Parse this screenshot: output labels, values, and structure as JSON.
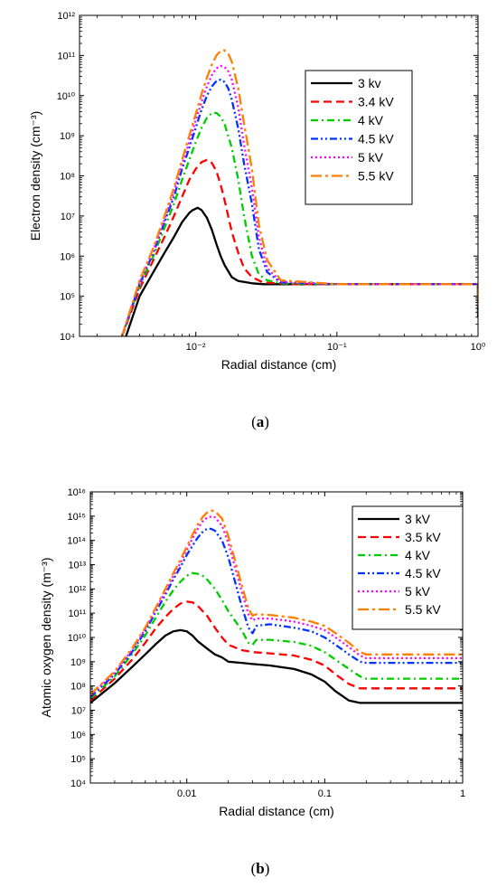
{
  "chart_data": [
    {
      "type": "line",
      "panel": "a",
      "caption": {
        "open": "(",
        "letter": "a",
        "close": ")"
      },
      "xlabel": "Radial distance (cm)",
      "ylabel": "Electron density (cm⁻³)",
      "x_scale": "log",
      "y_scale": "log",
      "xlim": [
        0.0015,
        1
      ],
      "ylim": [
        10000,
        1000000000000
      ],
      "x_ticks": [
        {
          "value": 0.01,
          "label": "10⁻²"
        },
        {
          "value": 0.1,
          "label": "10⁻¹"
        },
        {
          "value": 1,
          "label": "10⁰"
        }
      ],
      "y_ticks": [
        {
          "value": 10000,
          "label": "10⁴"
        },
        {
          "value": 100000,
          "label": "10⁵"
        },
        {
          "value": 1000000,
          "label": "10⁶"
        },
        {
          "value": 10000000,
          "label": "10⁷"
        },
        {
          "value": 100000000,
          "label": "10⁸"
        },
        {
          "value": 1000000000,
          "label": "10⁹"
        },
        {
          "value": 10000000000,
          "label": "10¹⁰"
        },
        {
          "value": 100000000000,
          "label": "10¹¹"
        },
        {
          "value": 1000000000000,
          "label": "10¹²"
        }
      ],
      "grid": false,
      "legend_position": "top-right",
      "series": [
        {
          "name": "3 kv",
          "color": "#000000",
          "dash": "solid",
          "x": [
            0.0032,
            0.004,
            0.005,
            0.006,
            0.007,
            0.008,
            0.009,
            0.0095,
            0.0103,
            0.011,
            0.012,
            0.013,
            0.014,
            0.015,
            0.016,
            0.018,
            0.02,
            0.025,
            0.03,
            0.05,
            0.1,
            0.3,
            0.999,
            1
          ],
          "y": [
            10000,
            100000,
            400000,
            1200000,
            3000000,
            7000000,
            12000000,
            14000000,
            16000000,
            14000000,
            9000000,
            4500000,
            2000000,
            1000000,
            600000,
            300000,
            240000,
            210000,
            200000,
            200000,
            200000,
            200000,
            200000,
            30000
          ]
        },
        {
          "name": "3.4 kV",
          "color": "#ff0000",
          "dash": "dashed",
          "x": [
            0.003,
            0.004,
            0.005,
            0.006,
            0.007,
            0.008,
            0.009,
            0.01,
            0.011,
            0.012,
            0.013,
            0.014,
            0.015,
            0.016,
            0.018,
            0.02,
            0.022,
            0.025,
            0.03,
            0.05,
            0.1,
            0.3,
            0.999,
            1
          ],
          "y": [
            10000,
            150000,
            800000,
            3000000,
            10000000,
            30000000,
            80000000,
            150000000,
            220000000,
            250000000,
            210000000,
            130000000,
            60000000,
            25000000,
            4000000,
            1200000,
            500000,
            300000,
            220000,
            200000,
            200000,
            200000,
            200000,
            35000
          ]
        },
        {
          "name": "4 kV",
          "color": "#00cc00",
          "dash": "dashdot",
          "x": [
            0.003,
            0.004,
            0.005,
            0.006,
            0.007,
            0.008,
            0.009,
            0.01,
            0.011,
            0.012,
            0.013,
            0.014,
            0.015,
            0.016,
            0.018,
            0.02,
            0.022,
            0.025,
            0.028,
            0.032,
            0.04,
            0.1,
            0.3,
            0.999,
            1
          ],
          "y": [
            10000,
            180000,
            1000000,
            5000000,
            20000000,
            80000000,
            250000000,
            700000000,
            1600000000,
            2800000000,
            3700000000,
            3700000000,
            3000000000,
            2000000000,
            500000000,
            80000000,
            10000000,
            1000000,
            350000,
            250000,
            210000,
            200000,
            200000,
            200000,
            40000
          ]
        },
        {
          "name": "4.5 kV",
          "color": "#0033ff",
          "dash": "dashdotdot",
          "x": [
            0.003,
            0.004,
            0.005,
            0.006,
            0.007,
            0.008,
            0.009,
            0.01,
            0.011,
            0.012,
            0.013,
            0.014,
            0.015,
            0.016,
            0.017,
            0.018,
            0.02,
            0.022,
            0.025,
            0.028,
            0.032,
            0.04,
            0.1,
            0.3,
            0.999,
            1
          ],
          "y": [
            10000,
            200000,
            1200000,
            7000000,
            30000000,
            150000000,
            500000000,
            1600000000,
            4500000000,
            10000000000,
            17000000000,
            23000000000,
            25000000000,
            22000000000,
            15000000000,
            8000000000,
            1500000000,
            200000000,
            20000000,
            1500000,
            400000,
            220000,
            200000,
            200000,
            200000,
            45000
          ]
        },
        {
          "name": "5 kV",
          "color": "#ff00ff",
          "dash": "dotted",
          "x": [
            0.003,
            0.004,
            0.005,
            0.006,
            0.007,
            0.008,
            0.009,
            0.01,
            0.011,
            0.012,
            0.013,
            0.014,
            0.015,
            0.016,
            0.017,
            0.018,
            0.02,
            0.022,
            0.025,
            0.028,
            0.032,
            0.04,
            0.1,
            0.3,
            0.999,
            1
          ],
          "y": [
            10000,
            220000,
            1400000,
            8000000,
            40000000,
            200000000,
            700000000,
            2500000000,
            7000000000,
            17000000000,
            32000000000,
            48000000000,
            55000000000,
            52000000000,
            40000000000,
            25000000000,
            5000000000,
            600000000,
            50000000,
            3000000,
            500000,
            230000,
            200000,
            200000,
            200000,
            50000
          ]
        },
        {
          "name": "5.5 kV",
          "color": "#ff7f00",
          "dash": "dashdotlong",
          "x": [
            0.003,
            0.004,
            0.005,
            0.006,
            0.007,
            0.008,
            0.009,
            0.01,
            0.011,
            0.012,
            0.013,
            0.014,
            0.015,
            0.016,
            0.017,
            0.018,
            0.02,
            0.022,
            0.025,
            0.028,
            0.032,
            0.04,
            0.1,
            0.3,
            0.999,
            1
          ],
          "y": [
            10000,
            250000,
            1600000,
            10000000,
            50000000,
            250000000,
            1000000000,
            3500000000,
            11000000000,
            28000000000,
            60000000000,
            100000000000,
            130000000000,
            135000000000,
            110000000000,
            70000000000,
            15000000000,
            2000000000,
            150000000,
            6000000,
            800000,
            250000,
            200000,
            200000,
            200000,
            55000
          ]
        }
      ]
    },
    {
      "type": "line",
      "panel": "b",
      "caption": {
        "open": "(",
        "letter": "b",
        "close": ")"
      },
      "xlabel": "Radial distance (cm)",
      "ylabel": "Atomic oxygen density (m⁻³)",
      "x_scale": "log",
      "y_scale": "log",
      "xlim": [
        0.002,
        1
      ],
      "ylim": [
        10000,
        10000000000000000
      ],
      "x_ticks": [
        {
          "value": 0.01,
          "label": "0.01"
        },
        {
          "value": 0.1,
          "label": "0.1"
        },
        {
          "value": 1,
          "label": "1"
        }
      ],
      "y_ticks": [
        {
          "value": 10000,
          "label": "10⁴"
        },
        {
          "value": 100000,
          "label": "10⁵"
        },
        {
          "value": 1000000,
          "label": "10⁶"
        },
        {
          "value": 10000000,
          "label": "10⁷"
        },
        {
          "value": 100000000,
          "label": "10⁸"
        },
        {
          "value": 1000000000,
          "label": "10⁹"
        },
        {
          "value": 10000000000,
          "label": "10¹⁰"
        },
        {
          "value": 100000000000,
          "label": "10¹¹"
        },
        {
          "value": 1000000000000,
          "label": "10¹²"
        },
        {
          "value": 10000000000000,
          "label": "10¹³"
        },
        {
          "value": 100000000000000,
          "label": "10¹⁴"
        },
        {
          "value": 1000000000000000,
          "label": "10¹⁵"
        },
        {
          "value": 10000000000000000,
          "label": "10¹⁶"
        }
      ],
      "grid": false,
      "legend_position": "top-right",
      "series": [
        {
          "name": "3 kV",
          "color": "#000000",
          "dash": "solid",
          "x": [
            0.002,
            0.003,
            0.004,
            0.005,
            0.006,
            0.007,
            0.008,
            0.009,
            0.01,
            0.011,
            0.012,
            0.014,
            0.016,
            0.018,
            0.02,
            0.025,
            0.03,
            0.04,
            0.06,
            0.08,
            0.1,
            0.12,
            0.15,
            0.18,
            0.2,
            0.5,
            1
          ],
          "y": [
            20000000,
            130000000,
            600000000,
            2000000000,
            5500000000,
            12000000000,
            18000000000,
            20000000000,
            18000000000,
            12000000000,
            7000000000,
            3500000000,
            2000000000,
            1500000000,
            1000000000,
            900000000,
            800000000,
            700000000,
            500000000,
            300000000,
            150000000,
            60000000,
            25000000,
            20000000,
            20000000,
            20000000,
            20000000
          ]
        },
        {
          "name": "3.5 kV",
          "color": "#ff0000",
          "dash": "dashed",
          "x": [
            0.002,
            0.003,
            0.004,
            0.005,
            0.006,
            0.007,
            0.008,
            0.009,
            0.01,
            0.011,
            0.012,
            0.014,
            0.016,
            0.018,
            0.02,
            0.025,
            0.03,
            0.04,
            0.06,
            0.08,
            0.1,
            0.12,
            0.15,
            0.18,
            0.2,
            0.5,
            1
          ],
          "y": [
            25000000,
            200000000,
            1200000000,
            6000000000,
            25000000000,
            70000000000,
            150000000000,
            250000000000,
            300000000000,
            280000000000,
            200000000000,
            80000000000,
            25000000000,
            10000000000,
            5000000000,
            3000000000,
            2500000000,
            2200000000,
            1800000000,
            1200000000,
            700000000,
            300000000,
            120000000,
            80000000,
            80000000,
            80000000,
            80000000
          ]
        },
        {
          "name": "4 kV",
          "color": "#00cc00",
          "dash": "dashdot",
          "x": [
            0.002,
            0.003,
            0.004,
            0.005,
            0.006,
            0.007,
            0.008,
            0.009,
            0.01,
            0.011,
            0.012,
            0.013,
            0.014,
            0.016,
            0.018,
            0.02,
            0.025,
            0.028,
            0.03,
            0.032,
            0.04,
            0.06,
            0.08,
            0.1,
            0.12,
            0.15,
            0.18,
            0.2,
            0.5,
            1
          ],
          "y": [
            30000000,
            250000000,
            2000000000,
            12000000000,
            70000000000,
            300000000000,
            900000000000,
            2000000000000,
            3500000000000,
            4500000000000,
            4200000000000,
            3500000000000,
            2500000000000,
            1000000000000,
            350000000000,
            120000000000,
            20000000000,
            6000000000,
            5000000000,
            8000000000,
            8000000000,
            6500000000,
            4500000000,
            2500000000,
            1200000000,
            500000000,
            250000000,
            200000000,
            200000000,
            200000000
          ]
        },
        {
          "name": "4.5 kV",
          "color": "#0033ff",
          "dash": "dashdotdot",
          "x": [
            0.002,
            0.003,
            0.004,
            0.005,
            0.006,
            0.007,
            0.008,
            0.009,
            0.01,
            0.011,
            0.012,
            0.013,
            0.014,
            0.015,
            0.016,
            0.018,
            0.02,
            0.025,
            0.028,
            0.03,
            0.032,
            0.04,
            0.06,
            0.08,
            0.1,
            0.12,
            0.15,
            0.18,
            0.2,
            0.5,
            1
          ],
          "y": [
            35000000,
            300000000,
            2500000000,
            18000000000,
            120000000000,
            600000000000,
            2500000000000,
            8000000000000,
            25000000000000,
            60000000000000,
            130000000000000,
            220000000000000,
            300000000000000,
            300000000000000,
            250000000000000,
            100000000000000,
            20000000000000,
            200000000000,
            25000000000,
            15000000000,
            30000000000,
            35000000000,
            25000000000,
            18000000000,
            10000000000,
            5000000000,
            2000000000,
            1000000000,
            900000000,
            900000000,
            900000000
          ]
        },
        {
          "name": "5 kV",
          "color": "#ff00ff",
          "dash": "dotted",
          "x": [
            0.002,
            0.003,
            0.004,
            0.005,
            0.006,
            0.007,
            0.008,
            0.009,
            0.01,
            0.011,
            0.012,
            0.013,
            0.014,
            0.015,
            0.016,
            0.018,
            0.02,
            0.025,
            0.028,
            0.03,
            0.032,
            0.04,
            0.06,
            0.08,
            0.1,
            0.12,
            0.15,
            0.18,
            0.2,
            0.5,
            1
          ],
          "y": [
            40000000,
            350000000,
            3000000000,
            22000000000,
            150000000000,
            800000000000,
            3500000000000,
            12000000000000,
            40000000000000,
            120000000000000,
            300000000000000,
            600000000000000,
            850000000000000,
            950000000000000,
            900000000000000,
            400000000000000,
            80000000000000,
            800000000000,
            90000000000,
            50000000000,
            60000000000,
            60000000000,
            45000000000,
            30000000000,
            20000000000,
            10000000000,
            4000000000,
            1800000000,
            1400000000,
            1400000000,
            1400000000
          ]
        },
        {
          "name": "5.5 kV",
          "color": "#ff7f00",
          "dash": "dashdotlong",
          "x": [
            0.002,
            0.003,
            0.004,
            0.005,
            0.006,
            0.007,
            0.008,
            0.009,
            0.01,
            0.011,
            0.012,
            0.013,
            0.014,
            0.015,
            0.016,
            0.018,
            0.02,
            0.025,
            0.028,
            0.03,
            0.032,
            0.04,
            0.06,
            0.08,
            0.1,
            0.12,
            0.15,
            0.18,
            0.2,
            0.5,
            1
          ],
          "y": [
            45000000,
            400000000,
            3500000000,
            25000000000,
            180000000000,
            1000000000000,
            4500000000000,
            16000000000000,
            55000000000000,
            170000000000000,
            450000000000000,
            900000000000000,
            1400000000000000,
            1700000000000000,
            1600000000000000,
            800000000000000,
            150000000000000,
            1500000000000,
            150000000000,
            80000000000,
            90000000000,
            85000000000,
            65000000000,
            45000000000,
            30000000000,
            15000000000,
            6000000000,
            2500000000,
            2000000000,
            2000000000,
            2000000000
          ]
        }
      ]
    }
  ]
}
